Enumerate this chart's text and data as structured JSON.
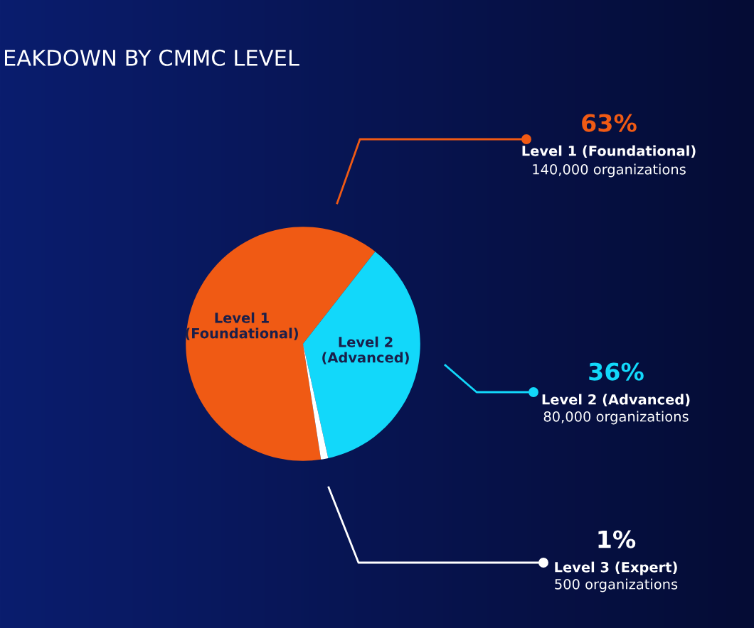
{
  "chart_data": {
    "type": "pie",
    "title": "EAKDOWN BY CMMC LEVEL",
    "categories": [
      "Level 1 (Foundational)",
      "Level 2 (Advanced)",
      "Level 3 (Expert)"
    ],
    "values": [
      63,
      36,
      1
    ],
    "colors": [
      "#f05a14",
      "#12d8fa",
      "#ffffff"
    ],
    "value_labels": [
      "63%",
      "36%",
      "1%"
    ],
    "legend": "right",
    "annotations": [
      "Level 1\n(Foundational)",
      "Level 2\n(Advanced)",
      "140,000 organizations",
      "80,000 organizations",
      "500 organizations"
    ]
  }
}
